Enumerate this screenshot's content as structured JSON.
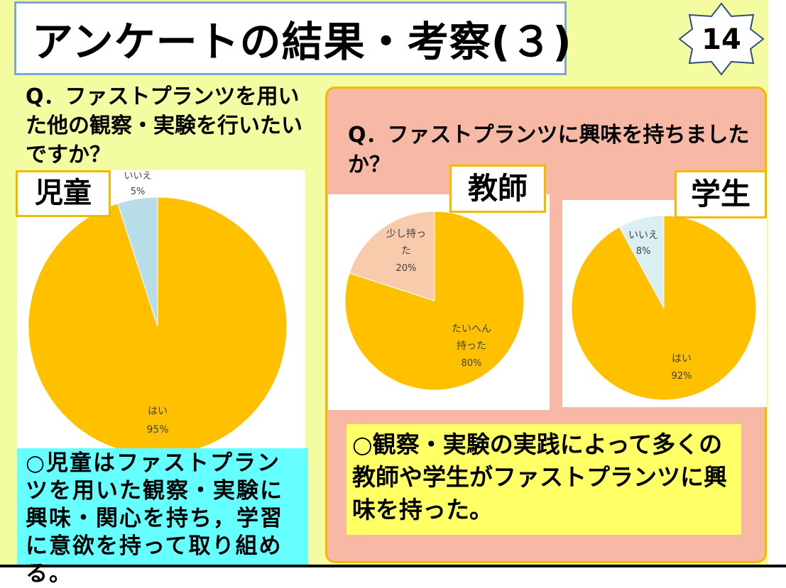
{
  "slide": {
    "title": "アンケートの結果・考察(３)",
    "page_number": "14"
  },
  "left": {
    "question": "Q．ファストプランツを用いた他の観察・実験を行いたいですか？",
    "group_label": "児童",
    "conclusion": "○児童はファストプランツを用いた観察・実験に興味・関心を持ち，学習に意欲を持って取り組める。"
  },
  "right": {
    "question": "Q．ファストプランツに興味を持ちましたか？",
    "teacher_label": "教師",
    "student_label": "学生",
    "conclusion": "○観察・実験の実践によって多くの教師や学生がファストプランツに興味を持った。"
  },
  "colors": {
    "yes": "#ffc000",
    "no_child": "#b7dde8",
    "some": "#f8cbad",
    "no_student": "#dbeef4"
  },
  "chart_data": [
    {
      "type": "pie",
      "title": "児童",
      "slices": [
        {
          "label": "はい",
          "value": 95,
          "display": "95%"
        },
        {
          "label": "いいえ",
          "value": 5,
          "display": "5%"
        }
      ]
    },
    {
      "type": "pie",
      "title": "教師",
      "slices": [
        {
          "label": "たいへん持った",
          "value": 80,
          "display": "80%"
        },
        {
          "label": "少し持った",
          "value": 20,
          "display": "20%"
        }
      ]
    },
    {
      "type": "pie",
      "title": "学生",
      "slices": [
        {
          "label": "はい",
          "value": 92,
          "display": "92%"
        },
        {
          "label": "いいえ",
          "value": 8,
          "display": "8%"
        }
      ]
    }
  ]
}
